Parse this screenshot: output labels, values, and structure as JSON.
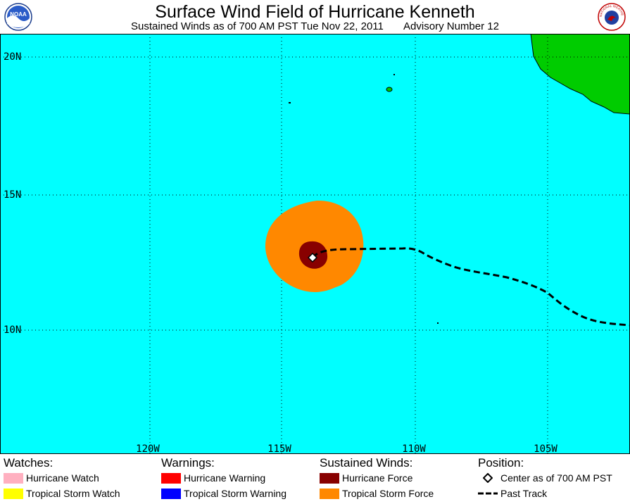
{
  "header": {
    "title": "Surface Wind Field of Hurricane Kenneth",
    "subtitle_time": "Sustained Winds as of 700 AM PST Tue Nov 22, 2011",
    "subtitle_advisory": "Advisory Number 12",
    "left_logo_text": "NOAA",
    "right_logo_text": "NATIONAL WEATHER SERVICE"
  },
  "map": {
    "ocean_color": "#00ffff",
    "land_color": "#00cc00",
    "lat_labels": [
      "20N",
      "15N",
      "10N"
    ],
    "lon_labels": [
      "120W",
      "115W",
      "110W",
      "105W"
    ]
  },
  "legend": {
    "watches": {
      "heading": "Watches:",
      "items": [
        {
          "label": "Hurricane Watch",
          "color": "#ffb0c0"
        },
        {
          "label": "Tropical Storm Watch",
          "color": "#ffff00"
        }
      ]
    },
    "warnings": {
      "heading": "Warnings:",
      "items": [
        {
          "label": "Hurricane Warning",
          "color": "#ff0000"
        },
        {
          "label": "Tropical Storm Warning",
          "color": "#0000ff"
        }
      ]
    },
    "winds": {
      "heading": "Sustained Winds:",
      "items": [
        {
          "label": "Hurricane Force",
          "color": "#880000"
        },
        {
          "label": "Tropical Storm Force",
          "color": "#ff8800"
        }
      ]
    },
    "position": {
      "heading": "Position:",
      "center_label": "Center as of 700 AM PST",
      "track_label": "Past Track"
    }
  }
}
